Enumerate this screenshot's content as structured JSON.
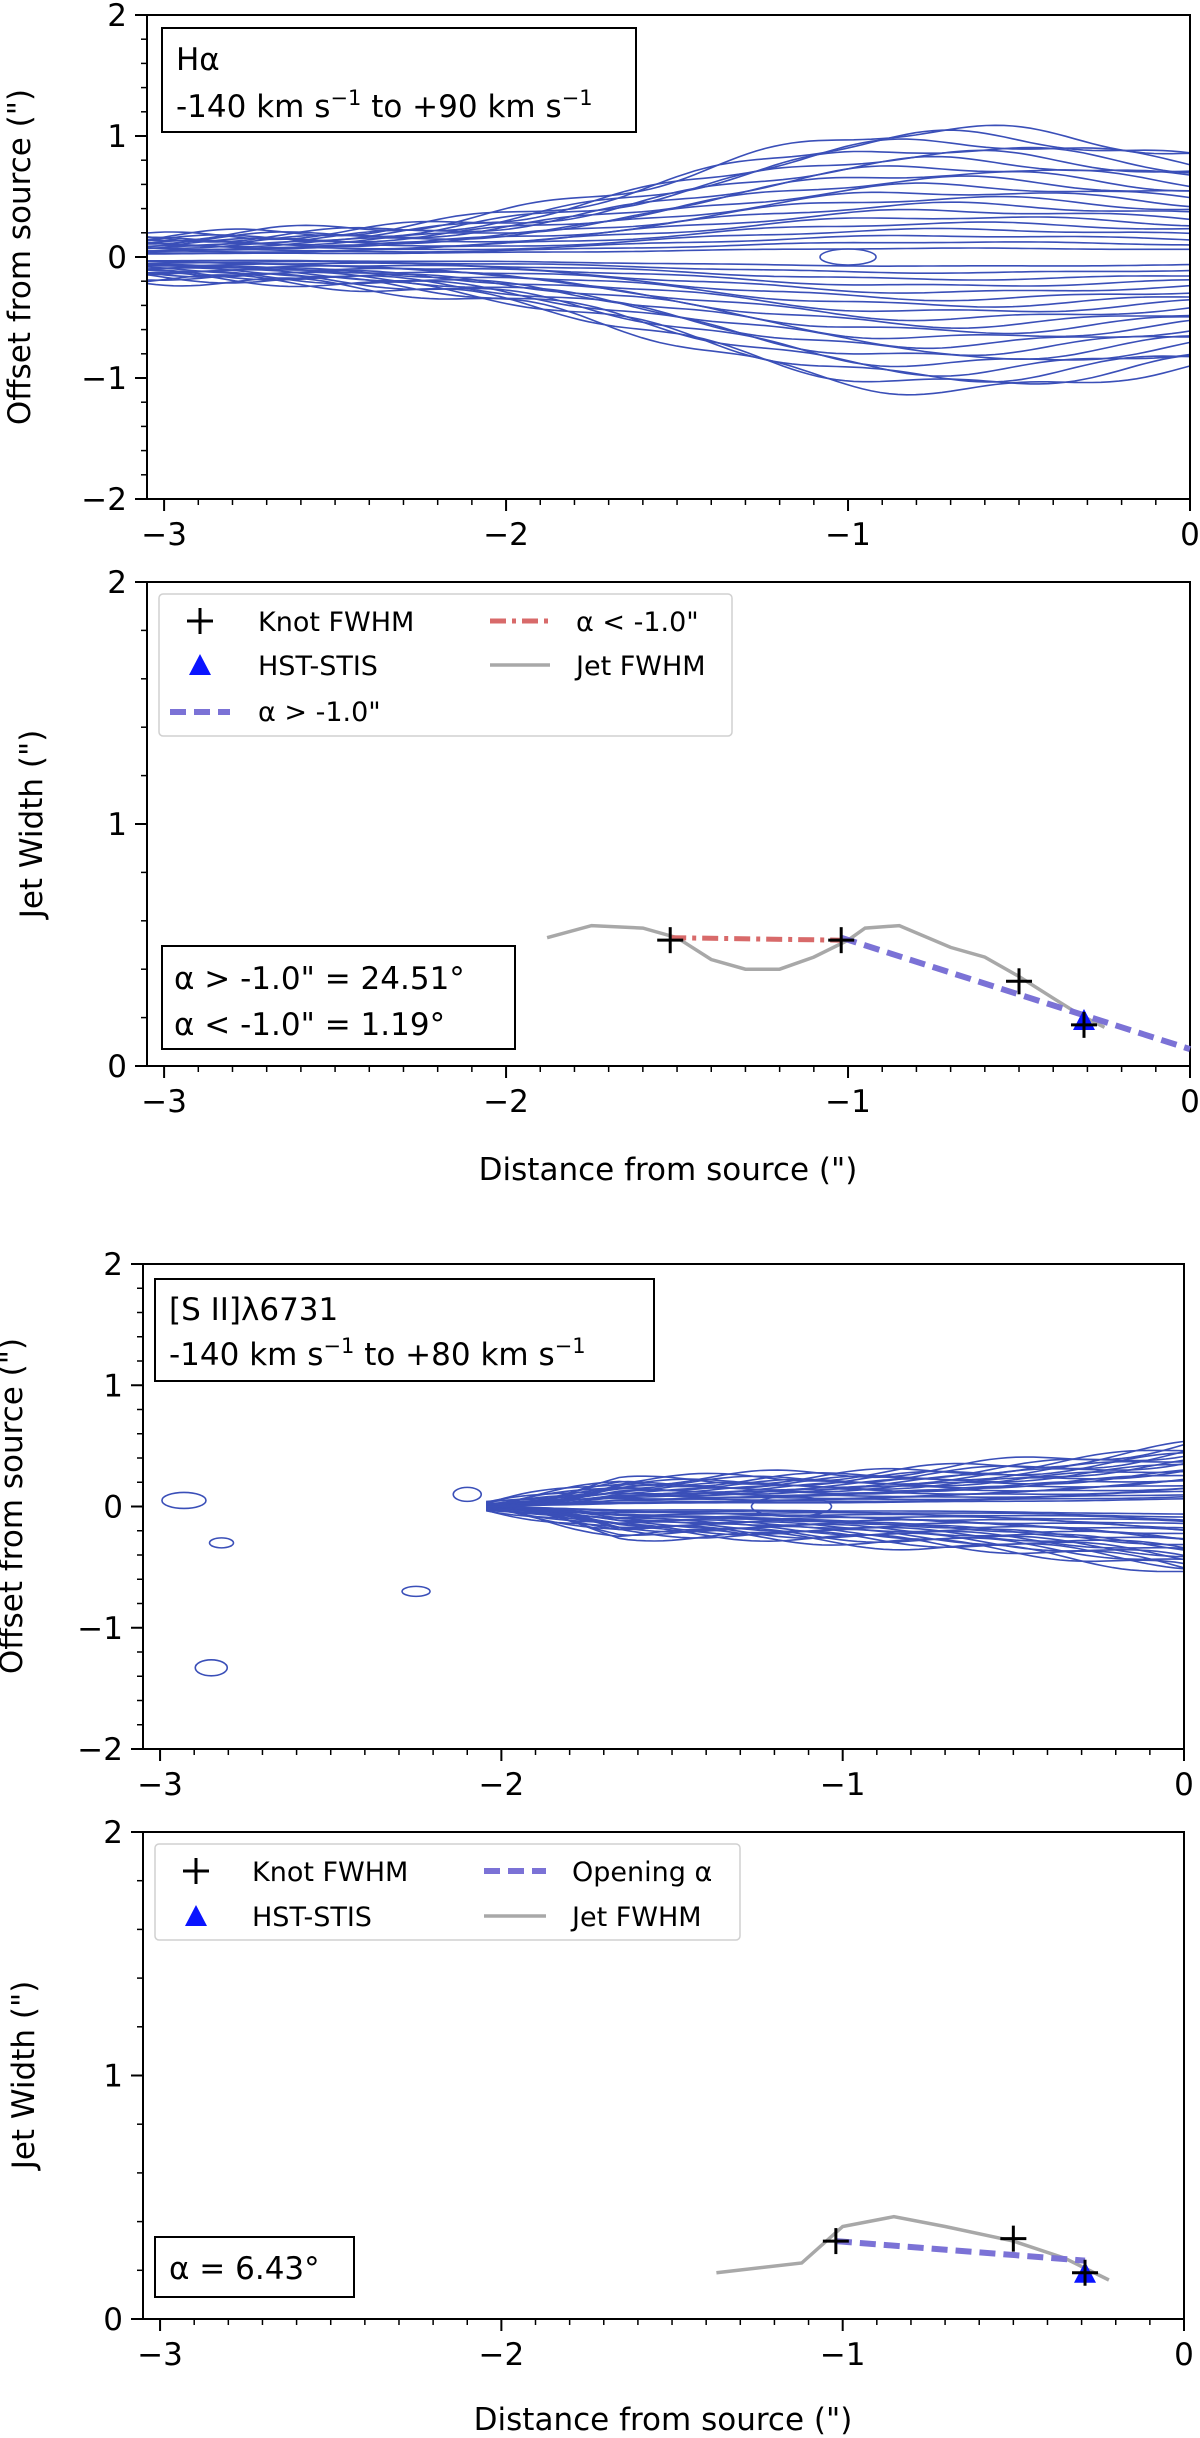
{
  "colors": {
    "contour": "#3a4fb8",
    "alpha_above": "#7b72d6",
    "alpha_below": "#d86a6a",
    "jet_fwhm": "#a8a8a8",
    "knot": "#000000",
    "hst": "#0a14ff"
  },
  "chart_data": [
    {
      "type": "contour",
      "panel": "halpha-pv",
      "annotation": {
        "line1": "Hα",
        "line2_prefix": "-140 km s",
        "line2_mid": " to +90 km s",
        "sup": "−1"
      },
      "ylabel": "Offset from source (\")",
      "xlim": [
        -3.05,
        0
      ],
      "ylim": [
        -2,
        2
      ],
      "xticks": [
        {
          "v": -3,
          "label": "−3"
        },
        {
          "v": -2,
          "label": "−2"
        },
        {
          "v": -1,
          "label": "−1"
        },
        {
          "v": 0,
          "label": "0"
        }
      ],
      "yticks": [
        {
          "v": 2,
          "label": "2"
        },
        {
          "v": 1,
          "label": "1"
        },
        {
          "v": 0,
          "label": "0"
        },
        {
          "v": -1,
          "label": "−1"
        },
        {
          "v": -2,
          "label": "−2"
        }
      ],
      "contours": {
        "levels": 20,
        "peak_x": -0.05,
        "peak_y": 0.0
      }
    },
    {
      "type": "line",
      "panel": "halpha-width",
      "ylabel": "Jet Width (\")",
      "xlabel": "Distance from source (\")",
      "xlim": [
        -3.05,
        0
      ],
      "ylim": [
        0,
        2
      ],
      "xticks": [
        {
          "v": -3,
          "label": "−3"
        },
        {
          "v": -2,
          "label": "−2"
        },
        {
          "v": -1,
          "label": "−1"
        },
        {
          "v": 0,
          "label": "0"
        }
      ],
      "yticks": [
        {
          "v": 2,
          "label": "2"
        },
        {
          "v": 1,
          "label": "1"
        },
        {
          "v": 0,
          "label": "0"
        }
      ],
      "legend": [
        "Knot FWHM",
        "HST-STIS",
        "α > -1.0\"",
        "α < -1.0\"",
        "Jet FWHM"
      ],
      "jet_fwhm": {
        "x": [
          -1.88,
          -1.75,
          -1.6,
          -1.5,
          -1.4,
          -1.3,
          -1.2,
          -1.1,
          -1.0,
          -0.95,
          -0.85,
          -0.7,
          -0.6,
          -0.5,
          -0.4,
          -0.32,
          -0.25
        ],
        "y": [
          0.53,
          0.58,
          0.57,
          0.53,
          0.44,
          0.4,
          0.4,
          0.45,
          0.52,
          0.57,
          0.58,
          0.49,
          0.45,
          0.37,
          0.28,
          0.21,
          0.16
        ]
      },
      "knots": {
        "x": [
          -1.52,
          -1.02,
          -0.5,
          -0.31
        ],
        "y": [
          0.52,
          0.52,
          0.35,
          0.17
        ]
      },
      "hst": {
        "x": [
          -0.31
        ],
        "y": [
          0.19
        ]
      },
      "fit_above": {
        "x": [
          -1.02,
          0.0
        ],
        "y": [
          0.53,
          0.07
        ]
      },
      "fit_below": {
        "x": [
          -1.52,
          -1.02
        ],
        "y": [
          0.53,
          0.52
        ]
      },
      "result_box": {
        "line1": "α > -1.0\" = 24.51°",
        "line2": "α < -1.0\" = 1.19°"
      }
    },
    {
      "type": "contour",
      "panel": "sii-pv",
      "annotation": {
        "line1": "[S II]λ6731",
        "line2_prefix": "-140 km s",
        "line2_mid": " to +80 km s",
        "sup": "−1"
      },
      "ylabel": "Offset from source (\")",
      "xlim": [
        -3.05,
        0
      ],
      "ylim": [
        -2,
        2
      ],
      "xticks": [
        {
          "v": -3,
          "label": "−3"
        },
        {
          "v": -2,
          "label": "−2"
        },
        {
          "v": -1,
          "label": "−1"
        },
        {
          "v": 0,
          "label": "0"
        }
      ],
      "yticks": [
        {
          "v": 2,
          "label": "2"
        },
        {
          "v": 1,
          "label": "1"
        },
        {
          "v": 0,
          "label": "0"
        },
        {
          "v": -1,
          "label": "−1"
        },
        {
          "v": -2,
          "label": "−2"
        }
      ],
      "contours": {
        "levels": 24,
        "peak_x": 0.0,
        "peak_y": 0.0
      }
    },
    {
      "type": "line",
      "panel": "sii-width",
      "ylabel": "Jet Width (\")",
      "xlabel": "Distance from source (\")",
      "xlim": [
        -3.05,
        0
      ],
      "ylim": [
        0,
        2
      ],
      "xticks": [
        {
          "v": -3,
          "label": "−3"
        },
        {
          "v": -2,
          "label": "−2"
        },
        {
          "v": -1,
          "label": "−1"
        },
        {
          "v": 0,
          "label": "0"
        }
      ],
      "yticks": [
        {
          "v": 2,
          "label": "2"
        },
        {
          "v": 1,
          "label": "1"
        },
        {
          "v": 0,
          "label": "0"
        }
      ],
      "legend": [
        "Knot FWHM",
        "HST-STIS",
        "Opening α",
        "Jet FWHM"
      ],
      "jet_fwhm": {
        "x": [
          -1.37,
          -1.12,
          -1.0,
          -0.85,
          -0.7,
          -0.5,
          -0.35,
          -0.22
        ],
        "y": [
          0.19,
          0.23,
          0.38,
          0.42,
          0.38,
          0.32,
          0.25,
          0.16
        ]
      },
      "knots": {
        "x": [
          -1.02,
          -0.5,
          -0.29
        ],
        "y": [
          0.32,
          0.33,
          0.19
        ]
      },
      "hst": {
        "x": [
          -0.29
        ],
        "y": [
          0.19
        ]
      },
      "fit_above": {
        "x": [
          -1.02,
          -0.29
        ],
        "y": [
          0.32,
          0.24
        ]
      },
      "result_box": {
        "line1": "α = 6.43°"
      }
    }
  ]
}
